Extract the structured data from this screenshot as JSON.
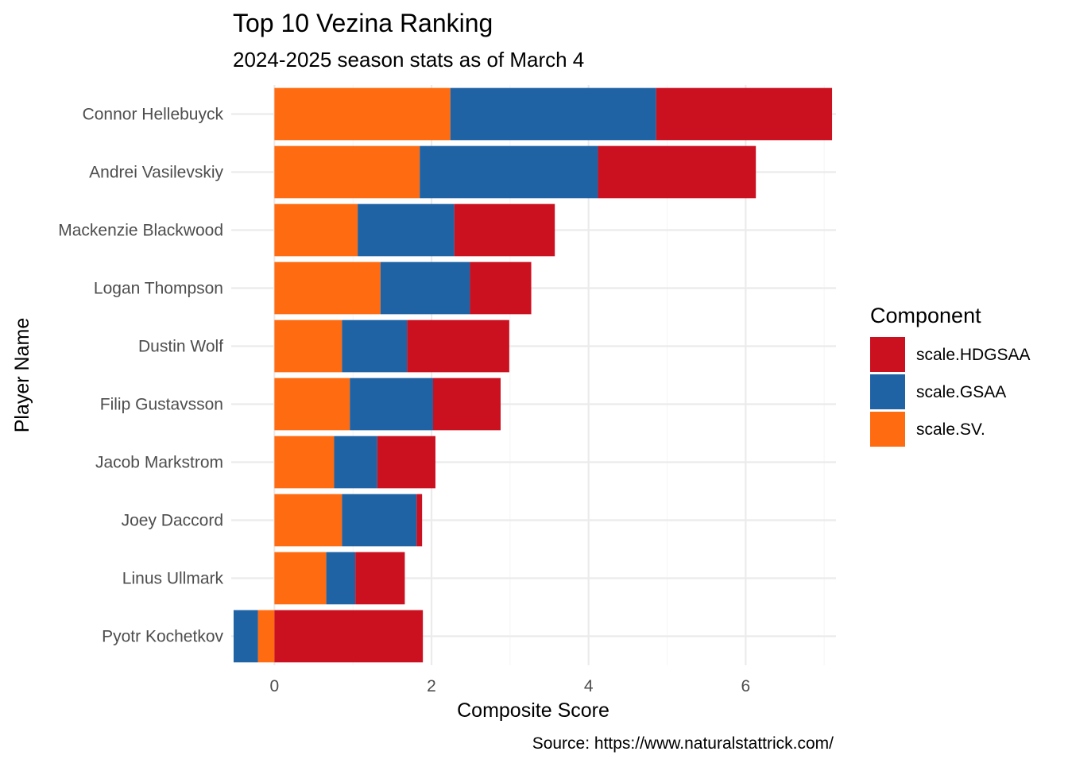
{
  "chart_data": {
    "type": "bar",
    "orientation": "horizontal",
    "stacked": true,
    "title": "Top 10 Vezina Ranking",
    "subtitle": "2024-2025 season stats as of March 4",
    "xlabel": "Composite Score",
    "ylabel": "Player Name",
    "caption": "Source: https://www.naturalstattrick.com/",
    "xlim": [
      -0.55,
      7.15
    ],
    "xticks": [
      0,
      2,
      4,
      6
    ],
    "grid": true,
    "legend": {
      "title": "Component",
      "position": "right",
      "entries": [
        "scale.HDGSAA",
        "scale.GSAA",
        "scale.SV."
      ]
    },
    "categories": [
      "Connor Hellebuyck",
      "Andrei Vasilevskiy",
      "Mackenzie Blackwood",
      "Logan Thompson",
      "Dustin Wolf",
      "Filip Gustavsson",
      "Jacob Markstrom",
      "Joey Daccord",
      "Linus Ullmark",
      "Pyotr Kochetkov"
    ],
    "series": [
      {
        "name": "scale.SV.",
        "color": "#FF6B10",
        "values": [
          2.24,
          1.85,
          1.06,
          1.35,
          0.86,
          0.96,
          0.76,
          0.86,
          0.66,
          -0.21
        ]
      },
      {
        "name": "scale.GSAA",
        "color": "#1F63A5",
        "values": [
          2.62,
          2.27,
          1.23,
          1.14,
          0.83,
          1.06,
          0.55,
          0.95,
          0.37,
          -0.31
        ]
      },
      {
        "name": "scale.HDGSAA",
        "color": "#CB1020",
        "values": [
          2.24,
          2.01,
          1.28,
          0.78,
          1.3,
          0.86,
          0.74,
          0.07,
          0.63,
          1.89
        ]
      }
    ]
  }
}
